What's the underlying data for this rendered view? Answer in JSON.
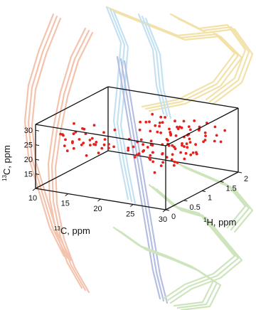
{
  "chart_data": {
    "type": "scatter",
    "dimensions": 3,
    "xlabel": {
      "sup": "13",
      "text": "C, ppm"
    },
    "ylabel": {
      "sup": "1",
      "text": "H, ppm"
    },
    "zlabel": {
      "sup": "13",
      "text": "C, ppm"
    },
    "xlim": [
      10,
      30
    ],
    "ylim": [
      0,
      2
    ],
    "zlim": [
      10,
      32
    ],
    "xticks": [
      "10",
      "15",
      "20",
      "25",
      "30"
    ],
    "yticks": [
      "0",
      "0.5",
      "1",
      "1.5",
      "2"
    ],
    "zticks": [
      "15",
      "20",
      "25",
      "30"
    ],
    "grid": false,
    "legend": "none",
    "point_color": "#e8201c",
    "background_structure": "protein-backbone-ribbons",
    "ribbon_colors": [
      "#f2b9a0",
      "#f0dc9a",
      "#b9dcef",
      "#a9b4de",
      "#c5e0b0"
    ],
    "points": [
      [
        11.5,
        0.42,
        26.5
      ],
      [
        11.8,
        0.5,
        24.2
      ],
      [
        12.2,
        0.35,
        27.1
      ],
      [
        12.5,
        0.6,
        25.8
      ],
      [
        12.9,
        0.28,
        23.9
      ],
      [
        13.1,
        0.55,
        26.9
      ],
      [
        13.4,
        0.41,
        24.7
      ],
      [
        13.8,
        0.66,
        27.5
      ],
      [
        14.0,
        0.3,
        25.2
      ],
      [
        14.3,
        0.5,
        23.3
      ],
      [
        14.6,
        0.38,
        26.1
      ],
      [
        14.9,
        0.62,
        24.4
      ],
      [
        15.2,
        0.45,
        27.8
      ],
      [
        15.5,
        0.33,
        25.5
      ],
      [
        15.8,
        0.57,
        23.6
      ],
      [
        16.1,
        0.47,
        26.4
      ],
      [
        16.4,
        0.36,
        24.9
      ],
      [
        16.7,
        0.68,
        27.3
      ],
      [
        17.0,
        0.4,
        25.0
      ],
      [
        17.3,
        0.52,
        23.1
      ],
      [
        17.6,
        0.31,
        26.7
      ],
      [
        17.9,
        0.6,
        24.2
      ],
      [
        18.2,
        0.44,
        27.0
      ],
      [
        18.5,
        0.37,
        25.7
      ],
      [
        18.8,
        0.58,
        23.8
      ],
      [
        12.0,
        0.7,
        28.5
      ],
      [
        13.5,
        0.25,
        22.6
      ],
      [
        15.0,
        0.72,
        28.9
      ],
      [
        16.6,
        0.22,
        22.3
      ],
      [
        18.0,
        0.75,
        28.2
      ],
      [
        13.2,
        0.48,
        21.8
      ],
      [
        16.9,
        0.5,
        21.5
      ],
      [
        14.7,
        0.45,
        29.4
      ],
      [
        19.0,
        0.4,
        24.6
      ],
      [
        11.2,
        0.55,
        25.1
      ],
      [
        20.5,
        1.0,
        30.2
      ],
      [
        20.8,
        1.2,
        29.1
      ],
      [
        21.0,
        0.9,
        28.3
      ],
      [
        21.3,
        1.4,
        27.6
      ],
      [
        21.5,
        1.1,
        26.8
      ],
      [
        21.8,
        0.8,
        25.9
      ],
      [
        22.0,
        1.3,
        25.1
      ],
      [
        22.2,
        1.0,
        24.3
      ],
      [
        22.4,
        1.5,
        23.6
      ],
      [
        22.6,
        0.7,
        22.8
      ],
      [
        22.8,
        1.2,
        22.0
      ],
      [
        23.0,
        0.9,
        21.3
      ],
      [
        23.2,
        1.4,
        20.5
      ],
      [
        23.4,
        1.1,
        19.8
      ],
      [
        23.6,
        0.8,
        19.0
      ],
      [
        23.8,
        1.3,
        18.3
      ],
      [
        24.0,
        1.0,
        17.6
      ],
      [
        24.2,
        1.6,
        16.9
      ],
      [
        24.4,
        0.7,
        16.2
      ],
      [
        24.6,
        1.2,
        15.5
      ],
      [
        20.6,
        1.6,
        26.2
      ],
      [
        20.9,
        0.6,
        24.0
      ],
      [
        21.2,
        1.7,
        22.4
      ],
      [
        21.6,
        0.5,
        27.9
      ],
      [
        21.9,
        1.8,
        23.2
      ],
      [
        22.3,
        0.6,
        26.6
      ],
      [
        22.7,
        1.7,
        24.8
      ],
      [
        23.1,
        0.5,
        23.5
      ],
      [
        23.5,
        1.8,
        21.9
      ],
      [
        23.9,
        0.6,
        25.4
      ],
      [
        24.3,
        1.7,
        20.1
      ],
      [
        24.7,
        0.5,
        22.6
      ],
      [
        25.0,
        1.5,
        24.1
      ],
      [
        25.3,
        0.9,
        26.3
      ],
      [
        25.6,
        1.3,
        21.7
      ],
      [
        25.9,
        1.0,
        23.0
      ],
      [
        26.2,
        1.6,
        25.6
      ],
      [
        26.5,
        0.8,
        20.8
      ],
      [
        26.8,
        1.4,
        22.2
      ],
      [
        27.1,
        1.1,
        24.5
      ],
      [
        27.4,
        0.7,
        26.1
      ],
      [
        27.7,
        1.5,
        23.4
      ],
      [
        28.0,
        1.2,
        21.2
      ],
      [
        28.3,
        0.9,
        25.0
      ],
      [
        28.6,
        1.6,
        22.7
      ],
      [
        20.7,
        1.3,
        31.0
      ],
      [
        21.4,
        1.0,
        30.5
      ],
      [
        22.1,
        1.4,
        29.8
      ],
      [
        22.9,
        1.1,
        29.0
      ],
      [
        23.7,
        0.9,
        28.6
      ],
      [
        24.5,
        1.3,
        28.0
      ],
      [
        25.2,
        1.0,
        27.4
      ],
      [
        26.0,
        1.4,
        27.0
      ],
      [
        26.7,
        1.1,
        26.7
      ],
      [
        27.5,
        0.9,
        26.0
      ],
      [
        20.9,
        1.5,
        28.8
      ],
      [
        21.7,
        1.2,
        28.1
      ],
      [
        22.5,
        1.6,
        27.4
      ],
      [
        23.3,
        1.3,
        26.9
      ],
      [
        24.1,
        1.5,
        26.3
      ],
      [
        24.9,
        1.2,
        25.8
      ],
      [
        25.7,
        1.7,
        25.2
      ],
      [
        26.4,
        1.3,
        24.6
      ],
      [
        27.2,
        1.6,
        24.0
      ],
      [
        28.0,
        1.4,
        23.6
      ],
      [
        21.1,
        0.8,
        20.4
      ],
      [
        21.9,
        1.1,
        19.6
      ],
      [
        22.6,
        0.9,
        18.7
      ],
      [
        23.5,
        1.2,
        17.9
      ],
      [
        24.3,
        0.9,
        17.2
      ],
      [
        25.1,
        1.2,
        16.6
      ],
      [
        25.8,
        1.0,
        18.4
      ],
      [
        26.6,
        1.3,
        19.2
      ],
      [
        27.3,
        1.0,
        20.0
      ],
      [
        28.1,
        1.2,
        20.7
      ],
      [
        22.0,
        0.4,
        24.9
      ],
      [
        22.8,
        0.4,
        26.4
      ],
      [
        23.6,
        0.3,
        23.8
      ],
      [
        24.4,
        0.4,
        25.7
      ],
      [
        25.4,
        0.4,
        24.4
      ],
      [
        22.2,
        1.9,
        25.3
      ],
      [
        23.0,
        1.9,
        23.7
      ],
      [
        23.8,
        1.9,
        26.0
      ],
      [
        24.6,
        1.9,
        24.2
      ],
      [
        25.5,
        1.9,
        22.5
      ],
      [
        26.3,
        1.8,
        26.8
      ],
      [
        27.0,
        1.9,
        25.1
      ],
      [
        27.8,
        1.8,
        23.1
      ],
      [
        28.5,
        1.9,
        24.4
      ],
      [
        29.0,
        1.7,
        22.0
      ],
      [
        21.5,
        0.9,
        23.5
      ],
      [
        22.4,
        1.0,
        22.9
      ],
      [
        23.3,
        0.8,
        24.7
      ],
      [
        24.2,
        1.1,
        23.3
      ],
      [
        25.0,
        0.8,
        22.1
      ],
      [
        21.8,
        1.5,
        21.5
      ],
      [
        22.7,
        1.4,
        20.3
      ],
      [
        23.6,
        1.6,
        19.4
      ],
      [
        24.5,
        1.4,
        18.6
      ],
      [
        25.3,
        1.6,
        17.5
      ]
    ]
  }
}
